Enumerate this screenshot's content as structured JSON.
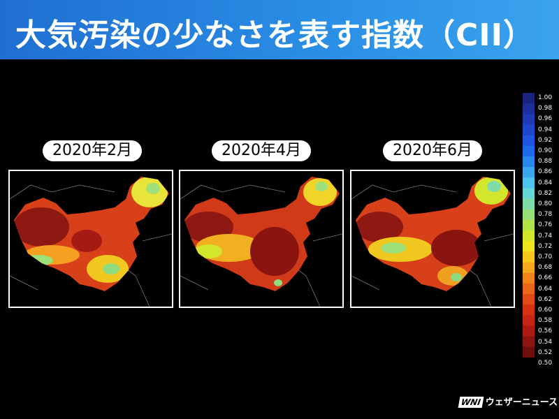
{
  "header": {
    "title": "大気汚染の少なさを表す指数（CII）"
  },
  "panels": [
    {
      "label": "2020年2月"
    },
    {
      "label": "2020年4月"
    },
    {
      "label": "2020年6月"
    }
  ],
  "colorbar": {
    "labels": [
      "1.00",
      "0.98",
      "0.96",
      "0.94",
      "0.92",
      "0.90",
      "0.88",
      "0.86",
      "0.84",
      "0.82",
      "0.80",
      "0.78",
      "0.76",
      "0.74",
      "0.72",
      "0.70",
      "0.68",
      "0.66",
      "0.64",
      "0.62",
      "0.60",
      "0.58",
      "0.56",
      "0.54",
      "0.52",
      "0.50"
    ],
    "colors": [
      "#1a237e",
      "#1c2f9a",
      "#1e3bb5",
      "#1f47cc",
      "#1f55e0",
      "#1f6aea",
      "#2a86ef",
      "#3aa6f0",
      "#4cc4ec",
      "#66d6d6",
      "#7fdcaa",
      "#96e07a",
      "#b2e44a",
      "#d4e62c",
      "#f0e41e",
      "#f6c81c",
      "#f5a81c",
      "#f0861a",
      "#ea6618",
      "#e44a16",
      "#d83214",
      "#c62414",
      "#ac1a14",
      "#8e1412",
      "#6e0e0e"
    ]
  },
  "logo": {
    "mark": "WNI",
    "text": "ウェザーニュース"
  }
}
